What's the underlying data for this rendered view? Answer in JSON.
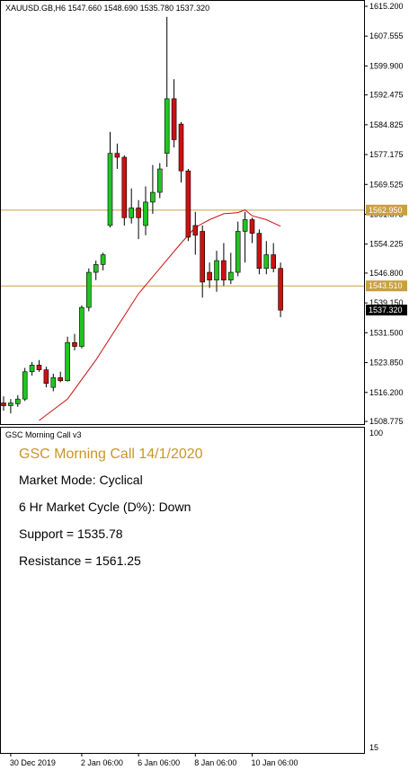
{
  "header": {
    "symbol_line": "XAUUSD.GB,H6  1547.660 1548.690 1535.780 1537.320"
  },
  "indicator": {
    "name": "GSC Morning Call v3",
    "title": "GSC Morning Call 14/1/2020",
    "mode": "Market Mode: Cyclical",
    "cycle": "6 Hr Market Cycle (D%): Down",
    "support": "Support = 1535.78",
    "resistance": "Resistance = 1561.25",
    "scale_top": "100",
    "scale_bottom": "15"
  },
  "colors": {
    "bull": "#22c322",
    "bear": "#cc1111",
    "level_line": "#c8a040",
    "ma_line": "#d01010",
    "title_color": "#c8962a",
    "price_tag": "#000000"
  },
  "chart_data": {
    "type": "candlestick",
    "title": "XAUUSD.GB,H6",
    "y_axis_ticks": [
      "1615.200",
      "1607.555",
      "1599.900",
      "1592.475",
      "1584.825",
      "1577.175",
      "1569.525",
      "1561.875",
      "1554.225",
      "1546.800",
      "1539.150",
      "1531.500",
      "1523.850",
      "1516.200",
      "1508.775"
    ],
    "ylim": [
      1508.775,
      1615.2
    ],
    "x_axis_ticks": [
      {
        "label": "30 Dec 2019",
        "index": 1
      },
      {
        "label": "2 Jan 06:00",
        "index": 11
      },
      {
        "label": "6 Jan 06:00",
        "index": 19
      },
      {
        "label": "8 Jan 06:00",
        "index": 27
      },
      {
        "label": "10 Jan 06:00",
        "index": 35
      }
    ],
    "horizontal_levels": [
      {
        "label": "1562.950",
        "value": 1562.95
      },
      {
        "label": "1543.510",
        "value": 1543.51
      }
    ],
    "last_price_label": "1537.320",
    "last_price": 1537.32,
    "candles": [
      {
        "o": 1513.5,
        "h": 1515.2,
        "l": 1511.5,
        "c": 1512.8
      },
      {
        "o": 1512.8,
        "h": 1514.5,
        "l": 1510.8,
        "c": 1513.5
      },
      {
        "o": 1513.3,
        "h": 1515.5,
        "l": 1512.5,
        "c": 1514.5
      },
      {
        "o": 1514.5,
        "h": 1522.5,
        "l": 1514.0,
        "c": 1521.5
      },
      {
        "o": 1521.5,
        "h": 1524.0,
        "l": 1520.5,
        "c": 1523.2
      },
      {
        "o": 1523.2,
        "h": 1524.5,
        "l": 1521.5,
        "c": 1522.0
      },
      {
        "o": 1522.0,
        "h": 1522.8,
        "l": 1517.5,
        "c": 1518.5
      },
      {
        "o": 1517.5,
        "h": 1521.0,
        "l": 1516.5,
        "c": 1520.0
      },
      {
        "o": 1520.0,
        "h": 1521.5,
        "l": 1518.8,
        "c": 1519.2
      },
      {
        "o": 1519.2,
        "h": 1530.5,
        "l": 1519.0,
        "c": 1529.0
      },
      {
        "o": 1529.0,
        "h": 1531.2,
        "l": 1527.0,
        "c": 1528.0
      },
      {
        "o": 1528.0,
        "h": 1538.5,
        "l": 1527.5,
        "c": 1538.0
      },
      {
        "o": 1538.0,
        "h": 1548.0,
        "l": 1537.0,
        "c": 1547.0
      },
      {
        "o": 1547.0,
        "h": 1550.0,
        "l": 1545.0,
        "c": 1549.0
      },
      {
        "o": 1549.0,
        "h": 1552.0,
        "l": 1547.5,
        "c": 1551.5
      },
      {
        "o": 1559.0,
        "h": 1583.0,
        "l": 1558.5,
        "c": 1577.5
      },
      {
        "o": 1577.5,
        "h": 1580.0,
        "l": 1573.5,
        "c": 1576.5
      },
      {
        "o": 1576.5,
        "h": 1577.0,
        "l": 1559.0,
        "c": 1561.0
      },
      {
        "o": 1561.0,
        "h": 1568.5,
        "l": 1559.5,
        "c": 1563.5
      },
      {
        "o": 1563.5,
        "h": 1565.5,
        "l": 1555.5,
        "c": 1561.0
      },
      {
        "o": 1559.0,
        "h": 1569.0,
        "l": 1556.5,
        "c": 1565.0
      },
      {
        "o": 1565.0,
        "h": 1574.5,
        "l": 1562.0,
        "c": 1567.5
      },
      {
        "o": 1567.5,
        "h": 1575.0,
        "l": 1566.0,
        "c": 1573.5
      },
      {
        "o": 1577.5,
        "h": 1612.5,
        "l": 1574.0,
        "c": 1591.5
      },
      {
        "o": 1591.5,
        "h": 1596.5,
        "l": 1579.0,
        "c": 1581.0
      },
      {
        "o": 1585.0,
        "h": 1585.5,
        "l": 1570.0,
        "c": 1573.0
      },
      {
        "o": 1573.0,
        "h": 1573.5,
        "l": 1555.0,
        "c": 1556.0
      },
      {
        "o": 1559.0,
        "h": 1562.5,
        "l": 1551.5,
        "c": 1556.5
      },
      {
        "o": 1557.5,
        "h": 1559.0,
        "l": 1540.5,
        "c": 1544.5
      },
      {
        "o": 1547.0,
        "h": 1549.5,
        "l": 1543.0,
        "c": 1545.0
      },
      {
        "o": 1545.0,
        "h": 1552.5,
        "l": 1542.0,
        "c": 1550.0
      },
      {
        "o": 1550.0,
        "h": 1554.5,
        "l": 1543.5,
        "c": 1545.0
      },
      {
        "o": 1545.0,
        "h": 1552.0,
        "l": 1544.0,
        "c": 1547.0
      },
      {
        "o": 1547.0,
        "h": 1560.0,
        "l": 1546.0,
        "c": 1557.5
      },
      {
        "o": 1557.5,
        "h": 1562.5,
        "l": 1549.5,
        "c": 1560.5
      },
      {
        "o": 1560.5,
        "h": 1561.0,
        "l": 1554.5,
        "c": 1557.0
      },
      {
        "o": 1557.0,
        "h": 1558.0,
        "l": 1546.5,
        "c": 1548.0
      },
      {
        "o": 1548.0,
        "h": 1555.0,
        "l": 1546.5,
        "c": 1551.5
      },
      {
        "o": 1551.5,
        "h": 1554.5,
        "l": 1547.0,
        "c": 1548.0
      },
      {
        "o": 1548.0,
        "h": 1549.5,
        "l": 1535.5,
        "c": 1537.3
      }
    ],
    "moving_average": [
      {
        "i": 5,
        "v": 1509.0
      },
      {
        "i": 9,
        "v": 1514.5
      },
      {
        "i": 13,
        "v": 1524.5
      },
      {
        "i": 16,
        "v": 1533.0
      },
      {
        "i": 19,
        "v": 1541.5
      },
      {
        "i": 22,
        "v": 1548.0
      },
      {
        "i": 25,
        "v": 1554.5
      },
      {
        "i": 27,
        "v": 1558.5
      },
      {
        "i": 29,
        "v": 1560.5
      },
      {
        "i": 31,
        "v": 1562.0
      },
      {
        "i": 33,
        "v": 1562.3
      },
      {
        "i": 34,
        "v": 1563.0
      },
      {
        "i": 35,
        "v": 1561.5
      },
      {
        "i": 37,
        "v": 1560.5
      },
      {
        "i": 39,
        "v": 1558.8
      }
    ]
  }
}
